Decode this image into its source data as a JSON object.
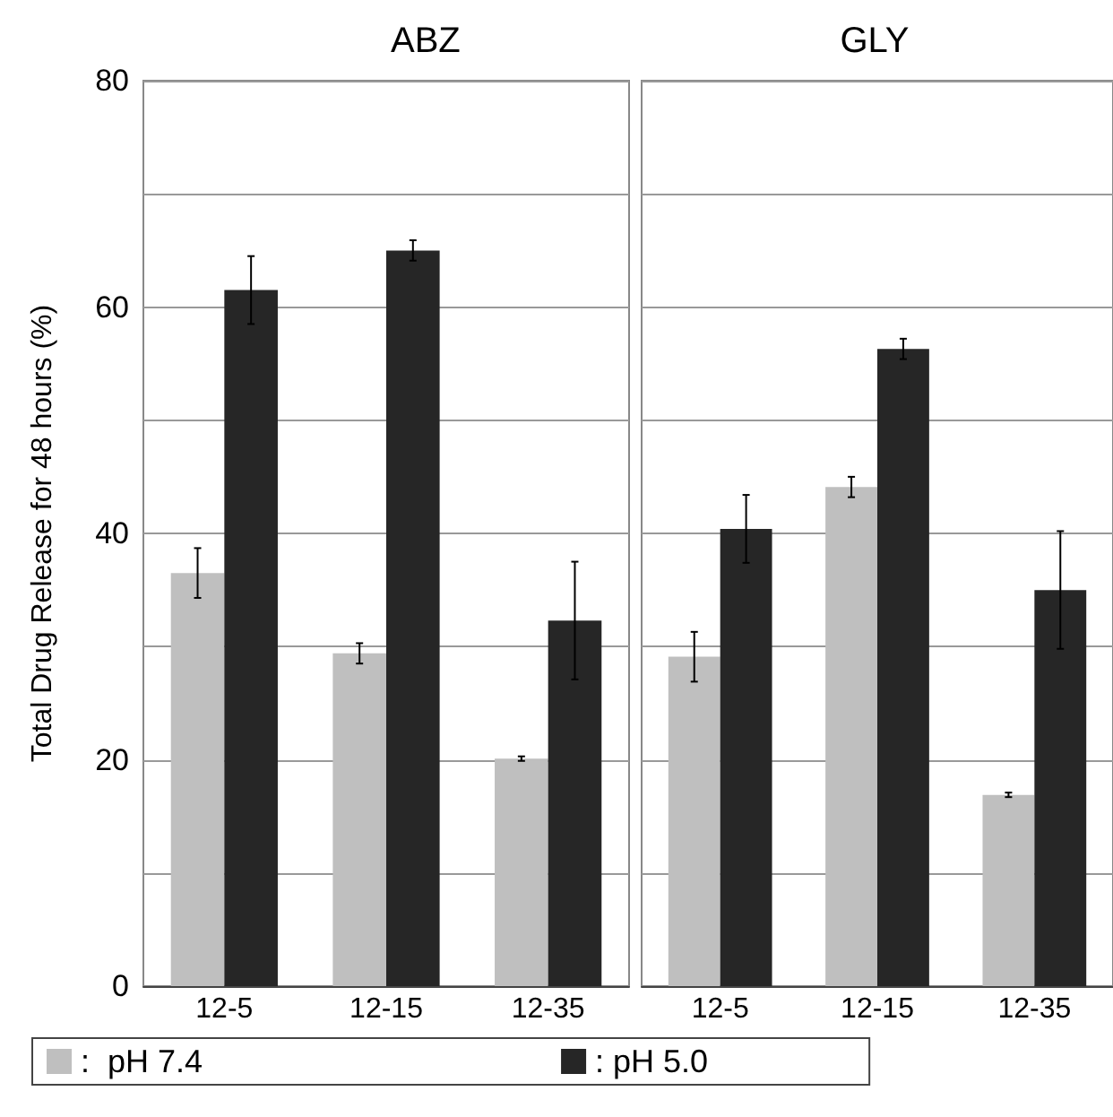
{
  "chart_data": [
    {
      "type": "bar",
      "title": "ABZ",
      "ylabel": "Total Drug Release for 48 hours (%)",
      "categories": [
        "12-5",
        "12-15",
        "12-35"
      ],
      "series": [
        {
          "name": ":  pH 7.4",
          "color": "#bfbfbf",
          "values": [
            36.5,
            29.4,
            20.1
          ],
          "errors": [
            2.2,
            0.9,
            0.2
          ]
        },
        {
          "name": ": pH 5.0",
          "color": "#262626",
          "values": [
            61.5,
            65.0,
            32.3
          ],
          "errors": [
            3.0,
            0.9,
            5.2
          ]
        }
      ],
      "ylim": [
        0,
        80
      ],
      "yticks": [
        0,
        {
          "value": 10,
          "label": null
        },
        20,
        {
          "value": 30,
          "label": null
        },
        40,
        {
          "value": 50,
          "label": null
        },
        60,
        {
          "value": 70,
          "label": null
        },
        80
      ],
      "grid": "y",
      "legend": "bottom"
    },
    {
      "type": "bar",
      "title": "GLY",
      "categories": [
        "12-5",
        "12-15",
        "12-35"
      ],
      "series": [
        {
          "color": "#bfbfbf",
          "values": [
            29.1,
            44.1,
            16.9
          ],
          "errors": [
            2.2,
            0.9,
            0.2
          ]
        },
        {
          "color": "#262626",
          "values": [
            40.4,
            56.3,
            35.0
          ],
          "errors": [
            3.0,
            0.9,
            5.2
          ]
        }
      ],
      "ylim": [
        0,
        80
      ],
      "yticks": [
        0,
        {
          "value": 10,
          "label": null
        },
        20,
        {
          "value": 30,
          "label": null
        },
        40,
        {
          "value": 50,
          "label": null
        },
        60,
        {
          "value": 70,
          "label": null
        },
        80
      ],
      "grid": "y",
      "tick_labels": "x"
    }
  ]
}
